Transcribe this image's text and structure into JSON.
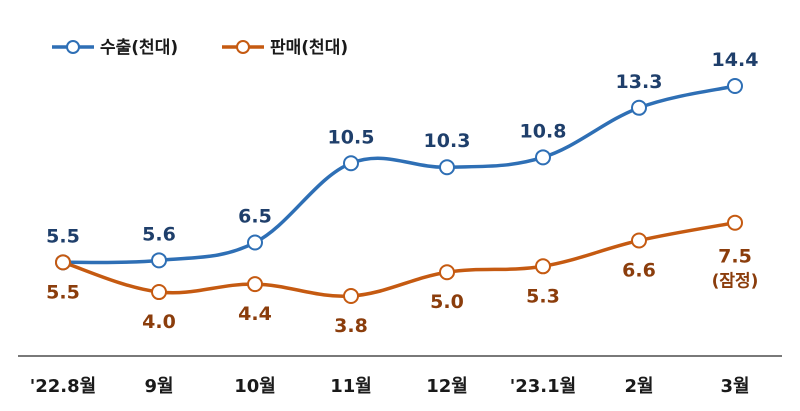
{
  "chart_data": {
    "type": "line",
    "categories": [
      "'22.8월",
      "9월",
      "10월",
      "11월",
      "12월",
      "'23.1월",
      "2월",
      "3월"
    ],
    "series": [
      {
        "name": "수출(천대)",
        "values": [
          5.5,
          5.6,
          6.5,
          10.5,
          10.3,
          10.8,
          13.3,
          14.4
        ],
        "color": "#2e6fb5",
        "label_color": "#1f3f6b"
      },
      {
        "name": "판매(천대)",
        "values": [
          5.5,
          4.0,
          4.4,
          3.8,
          5.0,
          5.3,
          6.6,
          7.5
        ],
        "color": "#c55a11",
        "label_color": "#8b3d0c"
      }
    ],
    "annotations": [
      {
        "series": 1,
        "index": 7,
        "text": "(잠정)"
      }
    ],
    "legend_position": "top-left",
    "grid": false,
    "ylim": [
      2,
      15.5
    ]
  }
}
